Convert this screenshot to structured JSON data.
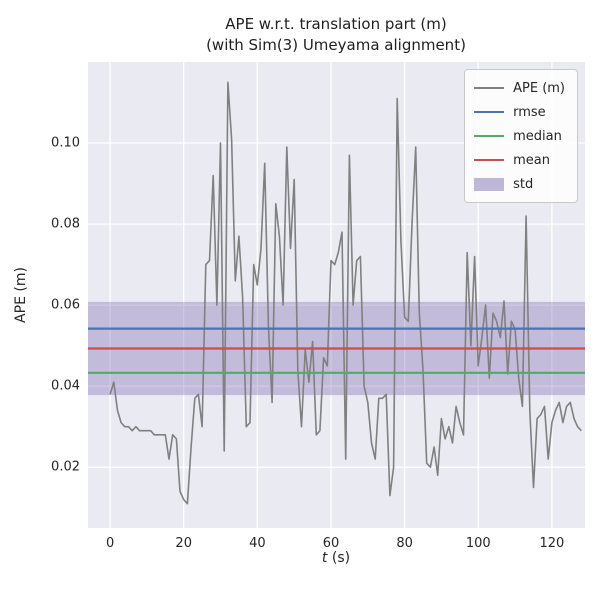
{
  "chart": {
    "title_line1": "APE w.r.t. translation part (m)",
    "title_line2": "(with Sim(3) Umeyama alignment)",
    "xlabel_var": "t",
    "xlabel_unit": " (s)",
    "ylabel": "APE (m)"
  },
  "legend": {
    "items": [
      {
        "label": "APE (m)",
        "type": "line",
        "color": "#808080"
      },
      {
        "label": "rmse",
        "type": "line",
        "color": "#4C72B0"
      },
      {
        "label": "median",
        "type": "line",
        "color": "#55A868"
      },
      {
        "label": "mean",
        "type": "line",
        "color": "#C44E52"
      },
      {
        "label": "std",
        "type": "patch",
        "color": "#8172B2"
      }
    ]
  },
  "chart_data": {
    "type": "line",
    "title": "APE w.r.t. translation part (m) (with Sim(3) Umeyama alignment)",
    "xlabel": "t (s)",
    "ylabel": "APE (m)",
    "xlim": [
      -6,
      129
    ],
    "ylim": [
      0.005,
      0.12
    ],
    "xticks": [
      0,
      20,
      40,
      60,
      80,
      100,
      120
    ],
    "yticks": [
      0.02,
      0.04,
      0.06,
      0.08,
      0.1
    ],
    "grid": true,
    "legend_position": "upper right",
    "colors": {
      "plot_background": "#EAEAF2",
      "gridline": "#FFFFFF",
      "ape": "#808080",
      "rmse": "#4C72B0",
      "median": "#55A868",
      "mean": "#C44E52",
      "std": "#8172B2"
    },
    "stats": {
      "rmse": 0.0542,
      "mean": 0.0493,
      "median": 0.0433,
      "std": 0.0115
    },
    "std_band": [
      0.0378,
      0.0608
    ],
    "hlines": [
      {
        "name": "rmse",
        "value": 0.0542,
        "color": "#4C72B0"
      },
      {
        "name": "median",
        "value": 0.0433,
        "color": "#55A868"
      },
      {
        "name": "mean",
        "value": 0.0493,
        "color": "#C44E52"
      }
    ],
    "series": [
      {
        "name": "APE (m)",
        "color": "#808080",
        "points": [
          [
            0,
            0.038
          ],
          [
            1,
            0.041
          ],
          [
            2,
            0.034
          ],
          [
            3,
            0.031
          ],
          [
            4,
            0.03
          ],
          [
            5,
            0.03
          ],
          [
            6,
            0.029
          ],
          [
            7,
            0.03
          ],
          [
            8,
            0.029
          ],
          [
            9,
            0.029
          ],
          [
            10,
            0.029
          ],
          [
            11,
            0.029
          ],
          [
            12,
            0.028
          ],
          [
            13,
            0.028
          ],
          [
            14,
            0.028
          ],
          [
            15,
            0.028
          ],
          [
            16,
            0.022
          ],
          [
            17,
            0.028
          ],
          [
            18,
            0.027
          ],
          [
            19,
            0.014
          ],
          [
            20,
            0.012
          ],
          [
            21,
            0.011
          ],
          [
            22,
            0.025
          ],
          [
            23,
            0.037
          ],
          [
            24,
            0.038
          ],
          [
            25,
            0.03
          ],
          [
            26,
            0.07
          ],
          [
            27,
            0.071
          ],
          [
            28,
            0.092
          ],
          [
            29,
            0.06
          ],
          [
            30,
            0.1
          ],
          [
            31,
            0.024
          ],
          [
            32,
            0.115
          ],
          [
            33,
            0.101
          ],
          [
            34,
            0.066
          ],
          [
            35,
            0.077
          ],
          [
            36,
            0.062
          ],
          [
            37,
            0.03
          ],
          [
            38,
            0.031
          ],
          [
            39,
            0.07
          ],
          [
            40,
            0.065
          ],
          [
            41,
            0.074
          ],
          [
            42,
            0.095
          ],
          [
            43,
            0.055
          ],
          [
            44,
            0.036
          ],
          [
            45,
            0.085
          ],
          [
            46,
            0.077
          ],
          [
            47,
            0.06
          ],
          [
            48,
            0.099
          ],
          [
            49,
            0.074
          ],
          [
            50,
            0.091
          ],
          [
            51,
            0.044
          ],
          [
            52,
            0.03
          ],
          [
            53,
            0.049
          ],
          [
            54,
            0.041
          ],
          [
            55,
            0.051
          ],
          [
            56,
            0.028
          ],
          [
            57,
            0.029
          ],
          [
            58,
            0.047
          ],
          [
            59,
            0.045
          ],
          [
            60,
            0.071
          ],
          [
            61,
            0.07
          ],
          [
            62,
            0.073
          ],
          [
            63,
            0.078
          ],
          [
            64,
            0.022
          ],
          [
            65,
            0.097
          ],
          [
            66,
            0.06
          ],
          [
            67,
            0.071
          ],
          [
            68,
            0.072
          ],
          [
            69,
            0.04
          ],
          [
            70,
            0.036
          ],
          [
            71,
            0.026
          ],
          [
            72,
            0.022
          ],
          [
            73,
            0.037
          ],
          [
            74,
            0.037
          ],
          [
            75,
            0.038
          ],
          [
            76,
            0.013
          ],
          [
            77,
            0.02
          ],
          [
            78,
            0.111
          ],
          [
            79,
            0.076
          ],
          [
            80,
            0.057
          ],
          [
            81,
            0.056
          ],
          [
            82,
            0.08
          ],
          [
            83,
            0.099
          ],
          [
            84,
            0.058
          ],
          [
            85,
            0.044
          ],
          [
            86,
            0.021
          ],
          [
            87,
            0.02
          ],
          [
            88,
            0.025
          ],
          [
            89,
            0.018
          ],
          [
            90,
            0.032
          ],
          [
            91,
            0.027
          ],
          [
            92,
            0.03
          ],
          [
            93,
            0.026
          ],
          [
            94,
            0.035
          ],
          [
            95,
            0.031
          ],
          [
            96,
            0.028
          ],
          [
            97,
            0.073
          ],
          [
            98,
            0.05
          ],
          [
            99,
            0.072
          ],
          [
            100,
            0.045
          ],
          [
            101,
            0.052
          ],
          [
            102,
            0.06
          ],
          [
            103,
            0.042
          ],
          [
            104,
            0.058
          ],
          [
            105,
            0.056
          ],
          [
            106,
            0.052
          ],
          [
            107,
            0.061
          ],
          [
            108,
            0.043
          ],
          [
            109,
            0.056
          ],
          [
            110,
            0.054
          ],
          [
            111,
            0.042
          ],
          [
            112,
            0.035
          ],
          [
            113,
            0.082
          ],
          [
            114,
            0.034
          ],
          [
            115,
            0.015
          ],
          [
            116,
            0.032
          ],
          [
            117,
            0.033
          ],
          [
            118,
            0.035
          ],
          [
            119,
            0.022
          ],
          [
            120,
            0.031
          ],
          [
            121,
            0.034
          ],
          [
            122,
            0.036
          ],
          [
            123,
            0.031
          ],
          [
            124,
            0.035
          ],
          [
            125,
            0.036
          ],
          [
            126,
            0.032
          ],
          [
            127,
            0.03
          ],
          [
            128,
            0.029
          ]
        ]
      }
    ]
  }
}
